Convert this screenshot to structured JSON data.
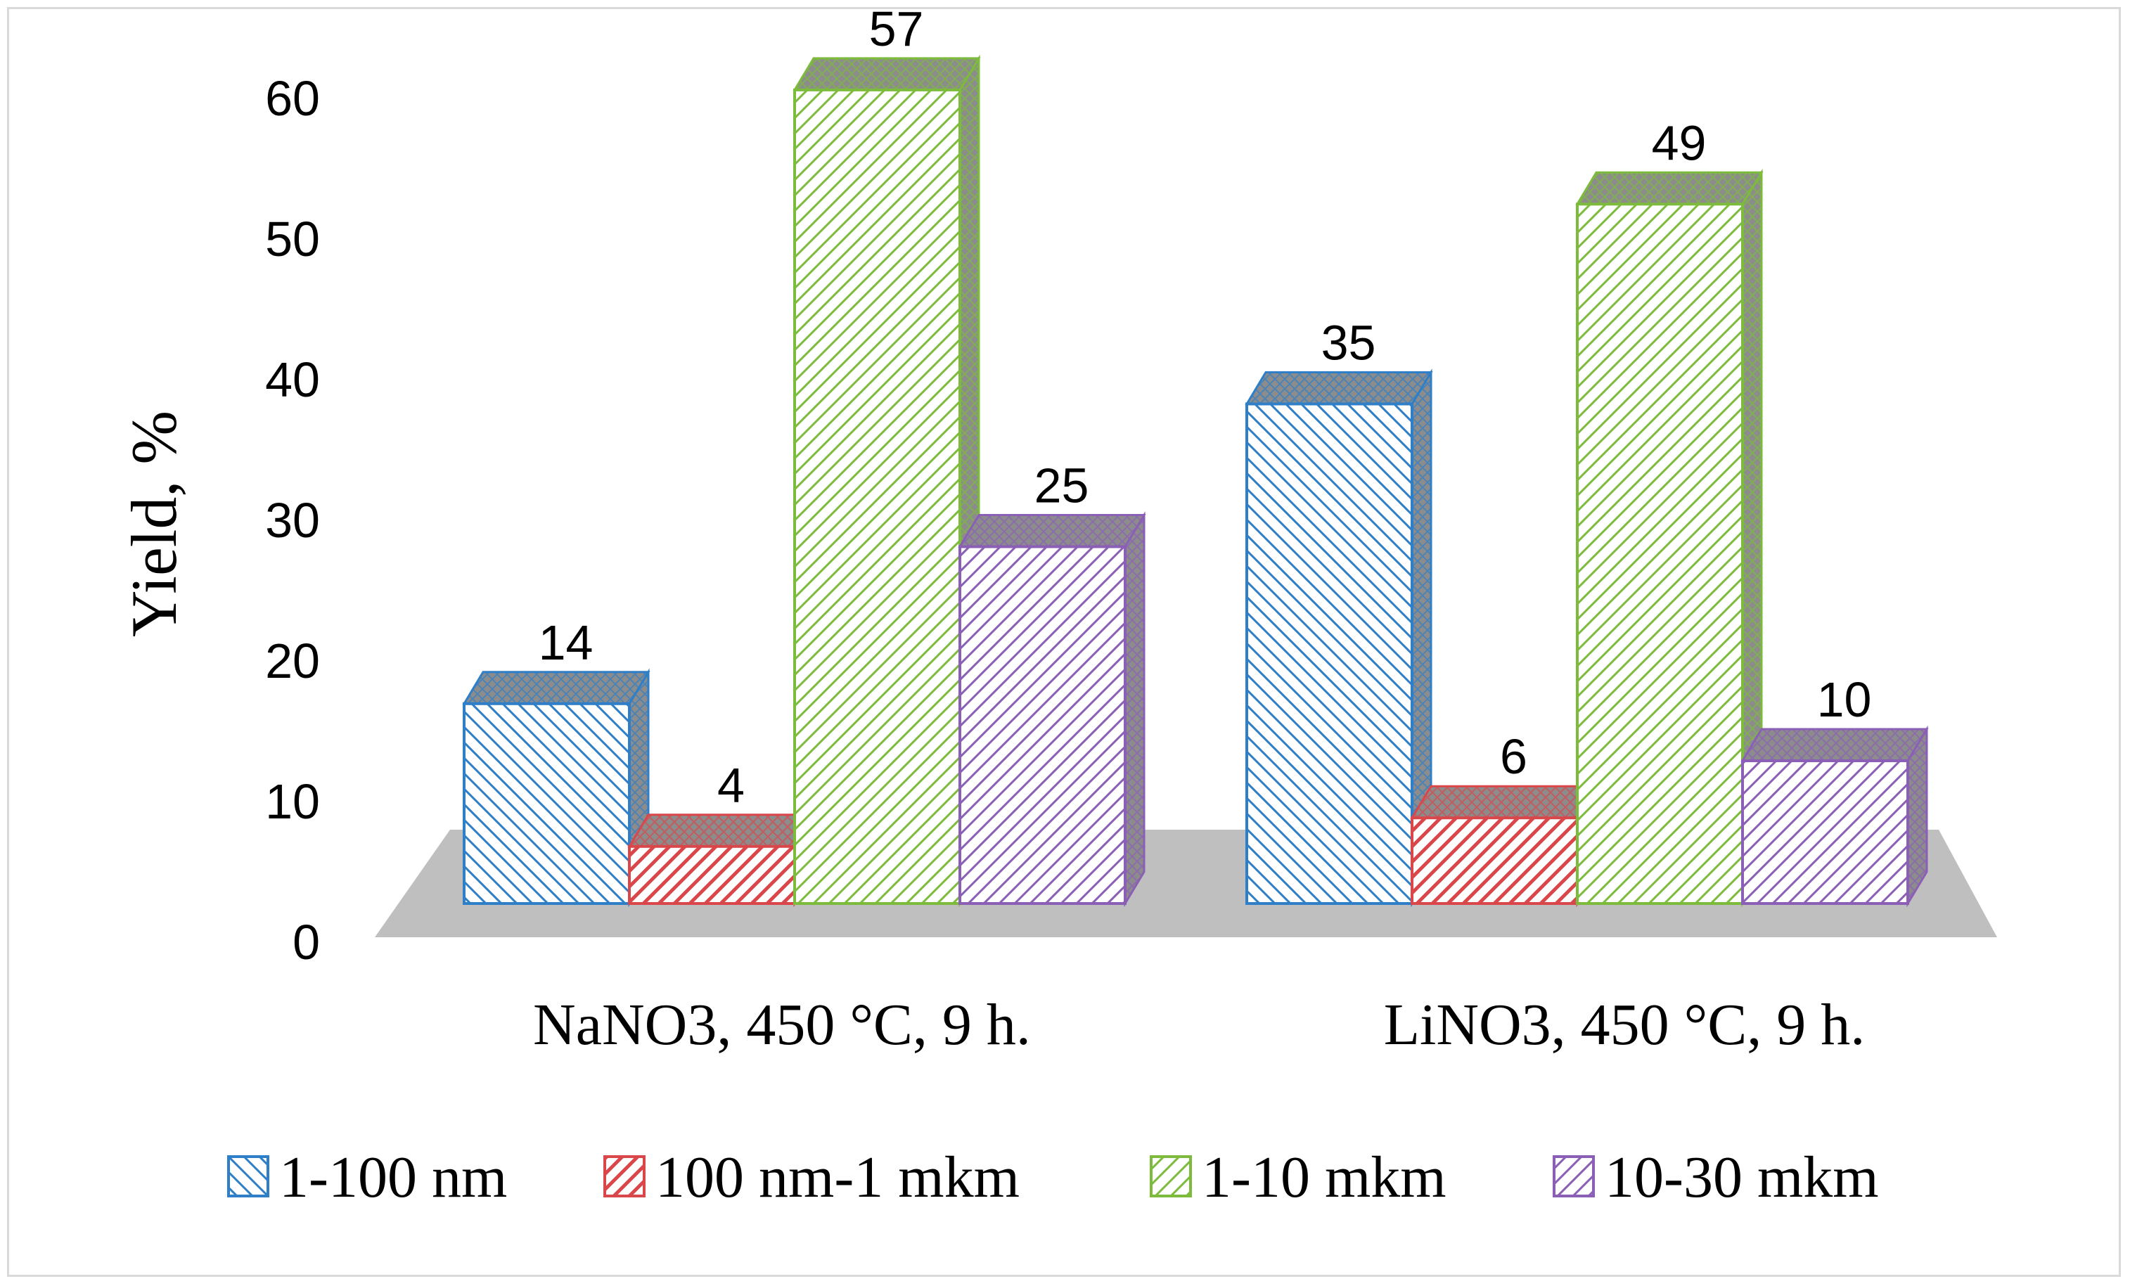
{
  "chart_data": {
    "type": "bar",
    "categories": [
      "NaNO3, 450 °C, 9 h.",
      "LiNO3, 450 °C, 9 h."
    ],
    "series": [
      {
        "name": "1-100 nm",
        "values": [
          14,
          35
        ],
        "color": "#2e7fc7",
        "pattern": "back-diagonal"
      },
      {
        "name": "100 nm-1 mkm",
        "values": [
          4,
          6
        ],
        "color": "#d9474b",
        "pattern": "wide-diagonal"
      },
      {
        "name": "1-10 mkm",
        "values": [
          57,
          49
        ],
        "color": "#7dbb3c",
        "pattern": "diagonal"
      },
      {
        "name": "10-30 mkm",
        "values": [
          25,
          10
        ],
        "color": "#8a5fb5",
        "pattern": "diagonal"
      }
    ],
    "ylabel": "Yield, %",
    "xlabel": "",
    "ylim": [
      0,
      60
    ],
    "yticks": [
      0,
      10,
      20,
      30,
      40,
      50,
      60
    ],
    "data_labels": true,
    "style": "3d-clustered",
    "floor_color": "#bfbfbf",
    "legend_position": "bottom",
    "grid": false
  }
}
